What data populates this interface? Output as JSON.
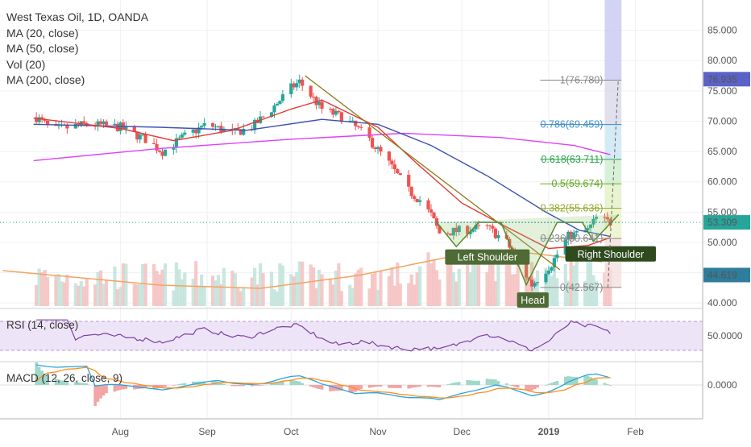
{
  "header": {
    "title": "West Texas Oil, 1D, OANDA",
    "indicators": [
      "MA (20, close)",
      "MA (50, close)",
      "Vol (20)",
      "MA (200, close)"
    ]
  },
  "price_tags": {
    "high": "76.935",
    "last": "53.309",
    "ma_level": "44.619"
  },
  "colors": {
    "up": "#26a69a",
    "down": "#ef5350",
    "ma20": "#e53935",
    "ma50": "#3f51b5",
    "ma200": "#e040fb",
    "vol_ma": "#f4a460",
    "rsi": "#7b3fa0",
    "macd_line": "#29a3e0",
    "signal_line": "#ff8c1a",
    "pattern": "#5a8a2a",
    "trendline": "#8b7a1a"
  },
  "chart_data": [
    {
      "type": "candlestick",
      "title": "West Texas Oil, 1D, OANDA",
      "ylim": [
        39.5,
        90
      ],
      "y_ticks": [
        "40.000",
        "45.000",
        "50.000",
        "55.000",
        "60.000",
        "65.000",
        "70.000",
        "75.000",
        "80.000",
        "85.000"
      ],
      "x_ticks": [
        "Aug",
        "Sep",
        "Oct",
        "Nov",
        "Dec",
        "2019",
        "Feb"
      ],
      "price_path": [
        {
          "date": "2018-07-01",
          "close": 71.0
        },
        {
          "date": "2018-07-08",
          "close": 68.5
        },
        {
          "date": "2018-07-20",
          "close": 69.5
        },
        {
          "date": "2018-08-01",
          "close": 69.0
        },
        {
          "date": "2018-08-10",
          "close": 67.0
        },
        {
          "date": "2018-08-16",
          "close": 65.0
        },
        {
          "date": "2018-08-24",
          "close": 67.5
        },
        {
          "date": "2018-09-01",
          "close": 69.5
        },
        {
          "date": "2018-09-10",
          "close": 68.0
        },
        {
          "date": "2018-09-17",
          "close": 69.0
        },
        {
          "date": "2018-09-24",
          "close": 72.0
        },
        {
          "date": "2018-10-01",
          "close": 75.5
        },
        {
          "date": "2018-10-04",
          "close": 76.5
        },
        {
          "date": "2018-10-12",
          "close": 72.0
        },
        {
          "date": "2018-10-20",
          "close": 70.5
        },
        {
          "date": "2018-10-28",
          "close": 67.5
        },
        {
          "date": "2018-11-05",
          "close": 63.0
        },
        {
          "date": "2018-11-12",
          "close": 58.5
        },
        {
          "date": "2018-11-16",
          "close": 57.0
        },
        {
          "date": "2018-11-20",
          "close": 54.5
        },
        {
          "date": "2018-11-23",
          "close": 51.5
        },
        {
          "date": "2018-12-01",
          "close": 52.0
        },
        {
          "date": "2018-12-10",
          "close": 52.5
        },
        {
          "date": "2018-12-17",
          "close": 50.0
        },
        {
          "date": "2018-12-22",
          "close": 46.0
        },
        {
          "date": "2018-12-26",
          "close": 43.0
        },
        {
          "date": "2019-01-02",
          "close": 46.5
        },
        {
          "date": "2019-01-08",
          "close": 51.0
        },
        {
          "date": "2019-01-15",
          "close": 52.0
        },
        {
          "date": "2019-01-18",
          "close": 54.0
        },
        {
          "date": "2019-01-23",
          "close": 53.3
        }
      ],
      "ma20": [
        {
          "date": "2018-07-01",
          "value": 70.5
        },
        {
          "date": "2018-08-01",
          "value": 68.8
        },
        {
          "date": "2018-08-20",
          "value": 66.8
        },
        {
          "date": "2018-09-10",
          "value": 68.5
        },
        {
          "date": "2018-10-01",
          "value": 72.0
        },
        {
          "date": "2018-10-12",
          "value": 73.5
        },
        {
          "date": "2018-11-01",
          "value": 69.0
        },
        {
          "date": "2018-11-15",
          "value": 63.0
        },
        {
          "date": "2018-12-01",
          "value": 56.5
        },
        {
          "date": "2018-12-15",
          "value": 53.0
        },
        {
          "date": "2019-01-01",
          "value": 49.0
        },
        {
          "date": "2019-01-15",
          "value": 49.5
        },
        {
          "date": "2019-01-23",
          "value": 50.8
        }
      ],
      "ma50": [
        {
          "date": "2018-07-01",
          "value": 69.5
        },
        {
          "date": "2018-08-15",
          "value": 69.0
        },
        {
          "date": "2018-09-15",
          "value": 68.5
        },
        {
          "date": "2018-10-12",
          "value": 70.3
        },
        {
          "date": "2018-11-01",
          "value": 69.5
        },
        {
          "date": "2018-11-20",
          "value": 66.0
        },
        {
          "date": "2018-12-10",
          "value": 61.0
        },
        {
          "date": "2018-12-31",
          "value": 55.0
        },
        {
          "date": "2019-01-12",
          "value": 52.0
        },
        {
          "date": "2019-01-23",
          "value": 51.0
        }
      ],
      "ma200": [
        {
          "date": "2018-07-01",
          "value": 63.5
        },
        {
          "date": "2018-08-15",
          "value": 65.5
        },
        {
          "date": "2018-09-30",
          "value": 67.0
        },
        {
          "date": "2018-11-10",
          "value": 68.0
        },
        {
          "date": "2018-12-15",
          "value": 67.3
        },
        {
          "date": "2019-01-10",
          "value": 66.0
        },
        {
          "date": "2019-01-23",
          "value": 64.5
        }
      ],
      "fibonacci": [
        {
          "label": "1(76.780)",
          "value": 76.78
        },
        {
          "label": "0.786(69.459)",
          "value": 69.459
        },
        {
          "label": "0.618(63.711)",
          "value": 63.711
        },
        {
          "label": "0.5(59.674)",
          "value": 59.674
        },
        {
          "label": "0.382(55.636)",
          "value": 55.636
        },
        {
          "label": "0.236(50.641)",
          "value": 50.641
        },
        {
          "label": "0(42.567)",
          "value": 42.567
        }
      ],
      "annotations": [
        "Left Shoulder",
        "Head",
        "Right Shoulder"
      ],
      "neckline": 53.3
    },
    {
      "type": "line",
      "title": "RSI (14, close)",
      "ylim": [
        20,
        80
      ],
      "y_ticks": [
        "50.0000"
      ],
      "bands": [
        30,
        70
      ]
    },
    {
      "type": "bar",
      "title": "MACD (12, 26, close, 9)",
      "y_ticks": [
        "0.0000"
      ]
    }
  ],
  "labels": {
    "left_shoulder": "Left Shoulder",
    "head": "Head",
    "right_shoulder": "Right Shoulder",
    "rsi_title": "RSI (14, close)",
    "macd_title": "MACD (12, 26, close, 9)",
    "rsi_tick": "50.0000",
    "macd_tick": "0.0000"
  }
}
